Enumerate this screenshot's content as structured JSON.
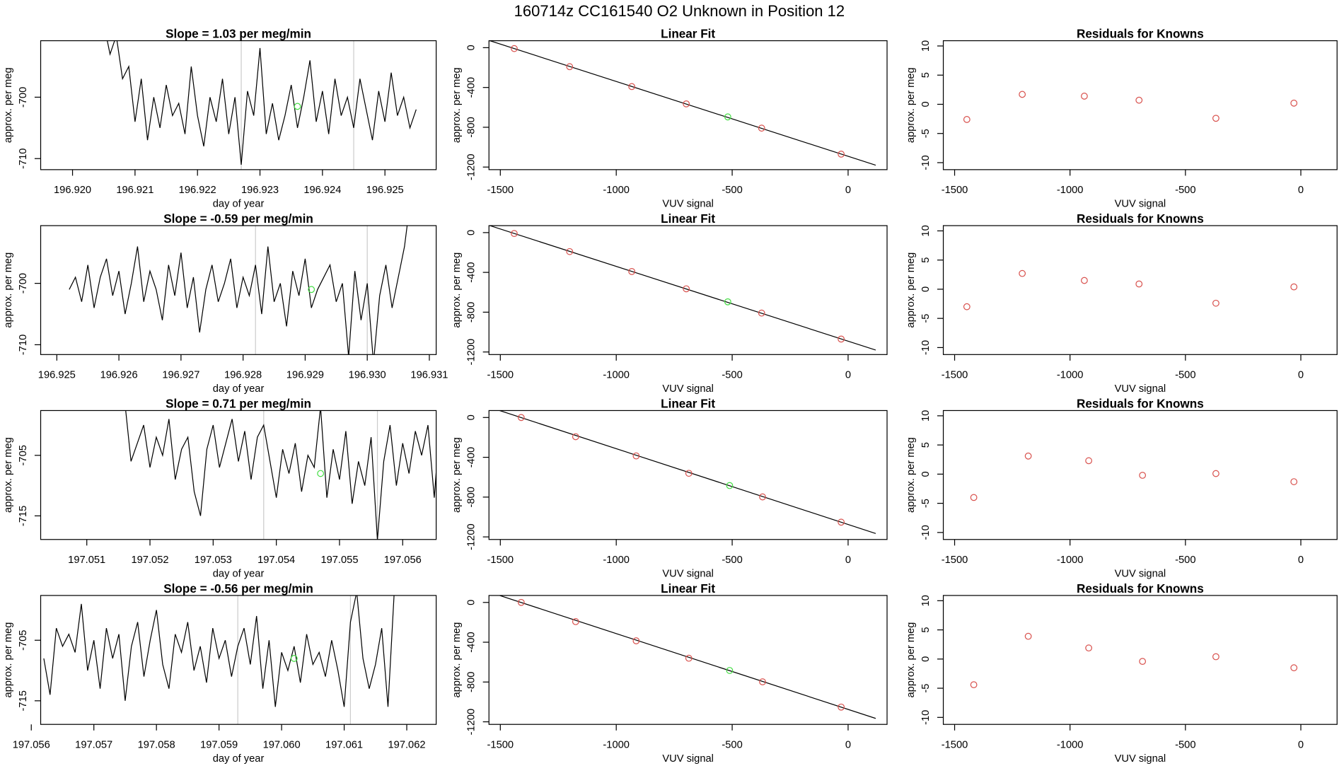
{
  "title": "160714z      CC161540    O2 Unknown in Position  12",
  "chart_data": [
    {
      "type": "line",
      "title": "Slope =  1.03  per meg/min",
      "xlabel": "day of year",
      "ylabel": "approx. per meg",
      "color": "#000000",
      "x": [
        196.9205,
        196.9206,
        196.9207,
        196.9208,
        196.9209,
        196.921,
        196.9211,
        196.9212,
        196.9213,
        196.9214,
        196.9215,
        196.9216,
        196.9217,
        196.9218,
        196.9219,
        196.922,
        196.9221,
        196.9222,
        196.9223,
        196.9224,
        196.9225,
        196.9226,
        196.9227,
        196.9228,
        196.9229,
        196.923,
        196.9231,
        196.9232,
        196.9233,
        196.9234,
        196.9235,
        196.9236,
        196.9237,
        196.9238,
        196.9239,
        196.924,
        196.9241,
        196.9242,
        196.9243,
        196.9244,
        196.9245,
        196.9246,
        196.9247,
        196.9248,
        196.9249,
        196.925,
        196.9251,
        196.9252,
        196.9253,
        196.9254,
        196.9255
      ],
      "values": [
        -688,
        -693,
        -690,
        -697,
        -695,
        -704,
        -697,
        -707,
        -700,
        -705,
        -698,
        -703,
        -701,
        -706,
        -695,
        -703,
        -708,
        -700,
        -704,
        -697,
        -706,
        -700,
        -711,
        -699,
        -703,
        -692,
        -706,
        -701,
        -707,
        -703,
        -698,
        -705,
        -700,
        -694,
        -704,
        -699,
        -706,
        -697,
        -703,
        -700,
        -705,
        -697,
        -702,
        -707,
        -699,
        -704,
        -696,
        -703,
        -700,
        -705,
        -702
      ],
      "xlim": [
        196.91949,
        196.92582
      ],
      "ylim": [
        -711.8,
        -690.8
      ],
      "xticks": [
        {
          "value": 196.92,
          "label": "196.920"
        },
        {
          "value": 196.921,
          "label": "196.921"
        },
        {
          "value": 196.922,
          "label": "196.922"
        },
        {
          "value": 196.923,
          "label": "196.923"
        },
        {
          "value": 196.924,
          "label": "196.924"
        },
        {
          "value": 196.925,
          "label": "196.925"
        }
      ],
      "yticks": [
        -700,
        -710
      ],
      "vlines": [
        196.9227,
        196.9245
      ],
      "vline_color": "#cccccc",
      "marker": {
        "x": 196.9236,
        "y": -701.5,
        "color": "#44dd44"
      }
    },
    {
      "type": "scatter",
      "title": "Linear Fit",
      "xlabel": "VUV signal",
      "ylabel": "approx. per meg",
      "x": [
        -1440,
        -1201,
        -933,
        -698,
        -519,
        -373,
        -30
      ],
      "values": [
        -9,
        -191,
        -391,
        -565,
        -696,
        -809,
        -1070
      ],
      "colors": [
        "#d9534f",
        "#d9534f",
        "#d9534f",
        "#d9534f",
        "#44dd44",
        "#d9534f",
        "#d9534f"
      ],
      "fit": {
        "x": [
          -1549,
          119
        ],
        "values": [
          73,
          -1181
        ],
        "color": "#000000"
      },
      "xlim": [
        -1549,
        168
      ],
      "ylim": [
        -1226,
        70
      ],
      "xticks": [
        -1500,
        -1000,
        -500,
        0
      ],
      "yticks": [
        0,
        -400,
        -800,
        -1200
      ]
    },
    {
      "type": "scatter",
      "title": "Residuals for Knowns",
      "xlabel": "VUV signal",
      "ylabel": "approx. per meg",
      "x": [
        -1447,
        -1207,
        -938,
        -701,
        -368,
        -30
      ],
      "values": [
        -2.6,
        1.7,
        1.4,
        0.7,
        -2.4,
        0.2
      ],
      "color": "#d9534f",
      "xlim": [
        -1549,
        157
      ],
      "ylim": [
        -11.2,
        10.9
      ],
      "xticks": [
        -1500,
        -1000,
        -500,
        0
      ],
      "yticks": [
        10,
        5,
        0,
        -5,
        -10
      ]
    },
    {
      "type": "line",
      "title": "Slope =  -0.59  per meg/min",
      "xlabel": "day of year",
      "ylabel": "approx. per meg",
      "color": "#000000",
      "x": [
        196.9252,
        196.9253,
        196.9254,
        196.9255,
        196.9256,
        196.9257,
        196.9258,
        196.9259,
        196.926,
        196.9261,
        196.9262,
        196.9263,
        196.9264,
        196.9265,
        196.9266,
        196.9267,
        196.9268,
        196.9269,
        196.927,
        196.9271,
        196.9272,
        196.9273,
        196.9274,
        196.9275,
        196.9276,
        196.9277,
        196.9278,
        196.9279,
        196.928,
        196.9281,
        196.9282,
        196.9283,
        196.9284,
        196.9285,
        196.9286,
        196.9287,
        196.9288,
        196.9289,
        196.929,
        196.9291,
        196.9292,
        196.9293,
        196.9294,
        196.9295,
        196.9296,
        196.9297,
        196.9298,
        196.9299,
        196.93,
        196.9301,
        196.9302,
        196.9303,
        196.9304,
        196.9305,
        196.9306,
        196.9307
      ],
      "values": [
        -701,
        -699,
        -703,
        -697,
        -704,
        -699,
        -696,
        -702,
        -698,
        -705,
        -700,
        -694,
        -703,
        -698,
        -701,
        -706,
        -697,
        -702,
        -695,
        -704,
        -699,
        -708,
        -701,
        -697,
        -703,
        -700,
        -696,
        -704,
        -699,
        -702,
        -697,
        -705,
        -694,
        -703,
        -700,
        -707,
        -698,
        -702,
        -696,
        -704,
        -701,
        -699,
        -697,
        -703,
        -700,
        -712,
        -698,
        -706,
        -700,
        -713,
        -702,
        -697,
        -704,
        -699,
        -694,
        -686
      ],
      "xlim": [
        196.92474,
        196.93111
      ],
      "ylim": [
        -711.6,
        -690.6
      ],
      "xticks": [
        {
          "value": 196.925,
          "label": "196.925"
        },
        {
          "value": 196.926,
          "label": "196.926"
        },
        {
          "value": 196.927,
          "label": "196.927"
        },
        {
          "value": 196.928,
          "label": "196.928"
        },
        {
          "value": 196.929,
          "label": "196.929"
        },
        {
          "value": 196.93,
          "label": "196.930"
        },
        {
          "value": 196.931,
          "label": "196.931"
        }
      ],
      "yticks": [
        -700,
        -710
      ],
      "vlines": [
        196.9282,
        196.93
      ],
      "vline_color": "#cccccc",
      "marker": {
        "x": 196.9291,
        "y": -701,
        "color": "#44dd44"
      }
    },
    {
      "type": "scatter",
      "title": "Linear Fit",
      "xlabel": "VUV signal",
      "ylabel": "approx. per meg",
      "x": [
        -1440,
        -1201,
        -933,
        -698,
        -519,
        -373,
        -30
      ],
      "values": [
        -9,
        -191,
        -391,
        -565,
        -696,
        -809,
        -1070
      ],
      "colors": [
        "#d9534f",
        "#d9534f",
        "#d9534f",
        "#d9534f",
        "#44dd44",
        "#d9534f",
        "#d9534f"
      ],
      "fit": {
        "x": [
          -1549,
          119
        ],
        "values": [
          73,
          -1181
        ],
        "color": "#000000"
      },
      "xlim": [
        -1549,
        168
      ],
      "ylim": [
        -1226,
        70
      ],
      "xticks": [
        -1500,
        -1000,
        -500,
        0
      ],
      "yticks": [
        0,
        -400,
        -800,
        -1200
      ]
    },
    {
      "type": "scatter",
      "title": "Residuals for Knowns",
      "xlabel": "VUV signal",
      "ylabel": "approx. per meg",
      "x": [
        -1447,
        -1207,
        -938,
        -701,
        -368,
        -30
      ],
      "values": [
        -3,
        2.7,
        1.5,
        0.9,
        -2.4,
        0.4
      ],
      "color": "#d9534f",
      "xlim": [
        -1549,
        157
      ],
      "ylim": [
        -11.2,
        10.9
      ],
      "xticks": [
        -1500,
        -1000,
        -500,
        0
      ],
      "yticks": [
        10,
        5,
        0,
        -5,
        -10
      ]
    },
    {
      "type": "line",
      "title": "Slope =  0.71  per meg/min",
      "xlabel": "day of year",
      "ylabel": "approx. per meg",
      "color": "#000000",
      "x": [
        197.0516,
        197.0517,
        197.0518,
        197.0519,
        197.052,
        197.0521,
        197.0522,
        197.0523,
        197.0524,
        197.0525,
        197.0526,
        197.0527,
        197.0528,
        197.0529,
        197.053,
        197.0531,
        197.0532,
        197.0533,
        197.0534,
        197.0535,
        197.0536,
        197.0537,
        197.0538,
        197.0539,
        197.054,
        197.0541,
        197.0542,
        197.0543,
        197.0544,
        197.0545,
        197.0546,
        197.0547,
        197.0548,
        197.0549,
        197.055,
        197.0551,
        197.0552,
        197.0553,
        197.0554,
        197.0555,
        197.0556,
        197.0557,
        197.0558,
        197.0559,
        197.056,
        197.0561,
        197.0562,
        197.0563,
        197.0564,
        197.0565,
        197.0566,
        197.0567
      ],
      "values": [
        -696,
        -706,
        -703,
        -700,
        -707,
        -702,
        -705,
        -699,
        -709,
        -704,
        -702,
        -711,
        -715,
        -704,
        -700,
        -707,
        -703,
        -699,
        -706,
        -701,
        -709,
        -702,
        -700,
        -706,
        -712,
        -704,
        -708,
        -703,
        -711,
        -705,
        -707,
        -697,
        -712,
        -704,
        -709,
        -701,
        -713,
        -706,
        -710,
        -702,
        -719,
        -706,
        -700,
        -710,
        -703,
        -708,
        -701,
        -705,
        -700,
        -712,
        -698,
        -704
      ],
      "xlim": [
        197.05027,
        197.05653
      ],
      "ylim": [
        -718.9,
        -697.6
      ],
      "xticks": [
        {
          "value": 197.051,
          "label": "197.051"
        },
        {
          "value": 197.052,
          "label": "197.052"
        },
        {
          "value": 197.053,
          "label": "197.053"
        },
        {
          "value": 197.054,
          "label": "197.054"
        },
        {
          "value": 197.055,
          "label": "197.055"
        },
        {
          "value": 197.056,
          "label": "197.056"
        }
      ],
      "yticks": [
        -705,
        -715
      ],
      "vlines": [
        197.0538,
        197.0556
      ],
      "vline_color": "#cccccc",
      "marker": {
        "x": 197.0547,
        "y": -708,
        "color": "#44dd44"
      }
    },
    {
      "type": "scatter",
      "title": "Linear Fit",
      "xlabel": "VUV signal",
      "ylabel": "approx. per meg",
      "x": [
        -1410,
        -1175,
        -914,
        -687,
        -511,
        -369,
        -30
      ],
      "values": [
        0,
        -193,
        -386,
        -561,
        -684,
        -798,
        -1052
      ],
      "colors": [
        "#d9534f",
        "#d9534f",
        "#d9534f",
        "#d9534f",
        "#44dd44",
        "#d9534f",
        "#d9534f"
      ],
      "fit": {
        "x": [
          -1549,
          119
        ],
        "values": [
          105,
          -1166
        ],
        "color": "#000000"
      },
      "xlim": [
        -1549,
        168
      ],
      "ylim": [
        -1226,
        70
      ],
      "xticks": [
        -1500,
        -1000,
        -500,
        0
      ],
      "yticks": [
        0,
        -400,
        -800,
        -1200
      ]
    },
    {
      "type": "scatter",
      "title": "Residuals for Knowns",
      "xlabel": "VUV signal",
      "ylabel": "approx. per meg",
      "x": [
        -1417,
        -1181,
        -919,
        -686,
        -368,
        -30
      ],
      "values": [
        -4,
        3.1,
        2.3,
        -0.2,
        0.1,
        -1.3
      ],
      "color": "#d9534f",
      "xlim": [
        -1549,
        157
      ],
      "ylim": [
        -11.2,
        10.9
      ],
      "xticks": [
        -1500,
        -1000,
        -500,
        0
      ],
      "yticks": [
        10,
        5,
        0,
        -5,
        -10
      ]
    },
    {
      "type": "line",
      "title": "Slope =  -0.56  per meg/min",
      "xlabel": "day of year",
      "ylabel": "approx. per meg",
      "color": "#000000",
      "x": [
        197.0562,
        197.0563,
        197.0564,
        197.0565,
        197.0566,
        197.0567,
        197.0568,
        197.0569,
        197.057,
        197.0571,
        197.0572,
        197.0573,
        197.0574,
        197.0575,
        197.0576,
        197.0577,
        197.0578,
        197.0579,
        197.058,
        197.0581,
        197.0582,
        197.0583,
        197.0584,
        197.0585,
        197.0586,
        197.0587,
        197.0588,
        197.0589,
        197.059,
        197.0591,
        197.0592,
        197.0593,
        197.0594,
        197.0595,
        197.0596,
        197.0597,
        197.0598,
        197.0599,
        197.06,
        197.0601,
        197.0602,
        197.0603,
        197.0604,
        197.0605,
        197.0606,
        197.0607,
        197.0608,
        197.0609,
        197.061,
        197.0611,
        197.0612,
        197.0613,
        197.0614,
        197.0615,
        197.0616,
        197.0617,
        197.0618
      ],
      "values": [
        -708,
        -714,
        -703,
        -706,
        -704,
        -707,
        -699,
        -710,
        -705,
        -713,
        -703,
        -708,
        -704,
        -715,
        -706,
        -702,
        -711,
        -705,
        -700,
        -709,
        -713,
        -704,
        -707,
        -702,
        -710,
        -706,
        -712,
        -703,
        -708,
        -705,
        -711,
        -706,
        -703,
        -709,
        -701,
        -713,
        -705,
        -716,
        -707,
        -710,
        -706,
        -712,
        -704,
        -709,
        -707,
        -711,
        -705,
        -710,
        -716,
        -702,
        -697,
        -708,
        -713,
        -709,
        -703,
        -716,
        -697
      ],
      "xlim": [
        197.05615,
        197.06247
      ],
      "ylim": [
        -718.9,
        -697.6
      ],
      "xticks": [
        {
          "value": 197.056,
          "label": "197.056"
        },
        {
          "value": 197.057,
          "label": "197.057"
        },
        {
          "value": 197.058,
          "label": "197.058"
        },
        {
          "value": 197.059,
          "label": "197.059"
        },
        {
          "value": 197.06,
          "label": "197.060"
        },
        {
          "value": 197.061,
          "label": "197.061"
        },
        {
          "value": 197.062,
          "label": "197.062"
        }
      ],
      "yticks": [
        -705,
        -715
      ],
      "vlines": [
        197.0593,
        197.0611
      ],
      "vline_color": "#cccccc",
      "marker": {
        "x": 197.0602,
        "y": -708,
        "color": "#44dd44"
      }
    },
    {
      "type": "scatter",
      "title": "Linear Fit",
      "xlabel": "VUV signal",
      "ylabel": "approx. per meg",
      "x": [
        -1410,
        -1175,
        -914,
        -687,
        -511,
        -369,
        -30
      ],
      "values": [
        0,
        -193,
        -386,
        -561,
        -684,
        -798,
        -1052
      ],
      "colors": [
        "#d9534f",
        "#d9534f",
        "#d9534f",
        "#d9534f",
        "#44dd44",
        "#d9534f",
        "#d9534f"
      ],
      "fit": {
        "x": [
          -1549,
          119
        ],
        "values": [
          105,
          -1166
        ],
        "color": "#000000"
      },
      "xlim": [
        -1549,
        168
      ],
      "ylim": [
        -1226,
        70
      ],
      "xticks": [
        -1500,
        -1000,
        -500,
        0
      ],
      "yticks": [
        0,
        -400,
        -800,
        -1200
      ]
    },
    {
      "type": "scatter",
      "title": "Residuals for Knowns",
      "xlabel": "VUV signal",
      "ylabel": "approx. per meg",
      "x": [
        -1417,
        -1181,
        -919,
        -686,
        -368,
        -30
      ],
      "values": [
        -4.4,
        3.9,
        1.9,
        -0.4,
        0.4,
        -1.5
      ],
      "color": "#d9534f",
      "xlim": [
        -1549,
        157
      ],
      "ylim": [
        -11.2,
        10.9
      ],
      "xticks": [
        -1500,
        -1000,
        -500,
        0
      ],
      "yticks": [
        10,
        5,
        0,
        -5,
        -10
      ]
    }
  ]
}
